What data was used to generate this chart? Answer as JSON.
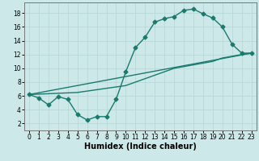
{
  "xlabel": "Humidex (Indice chaleur)",
  "bg_color": "#cce8e8",
  "grid_color": "#b8d8d8",
  "line_color": "#1a7a6e",
  "xlim": [
    -0.5,
    23.5
  ],
  "ylim": [
    1,
    19.5
  ],
  "xticks": [
    0,
    1,
    2,
    3,
    4,
    5,
    6,
    7,
    8,
    9,
    10,
    11,
    12,
    13,
    14,
    15,
    16,
    17,
    18,
    19,
    20,
    21,
    22,
    23
  ],
  "yticks": [
    2,
    4,
    6,
    8,
    10,
    12,
    14,
    16,
    18
  ],
  "line1_x": [
    0,
    1,
    2,
    3,
    4,
    5,
    6,
    7,
    8,
    9,
    10,
    11,
    12,
    13,
    14,
    15,
    16,
    17,
    18,
    19,
    20,
    21,
    22,
    23
  ],
  "line1_y": [
    6.2,
    5.7,
    4.7,
    5.9,
    5.5,
    3.3,
    2.5,
    3.0,
    3.0,
    5.5,
    9.5,
    13.0,
    14.5,
    16.7,
    17.2,
    17.5,
    18.4,
    18.6,
    17.9,
    17.3,
    16.0,
    13.5,
    12.2,
    12.2
  ],
  "line2_x": [
    0,
    23
  ],
  "line2_y": [
    6.2,
    12.2
  ],
  "line3_x": [
    0,
    5,
    10,
    13,
    15,
    17,
    19,
    20,
    22,
    23
  ],
  "line3_y": [
    6.2,
    6.5,
    7.5,
    9.0,
    10.0,
    10.5,
    11.0,
    11.5,
    12.0,
    12.2
  ],
  "marker": "D",
  "markersize": 2.5,
  "linewidth": 1.0,
  "xlabel_fontsize": 7,
  "tick_fontsize": 5.5
}
